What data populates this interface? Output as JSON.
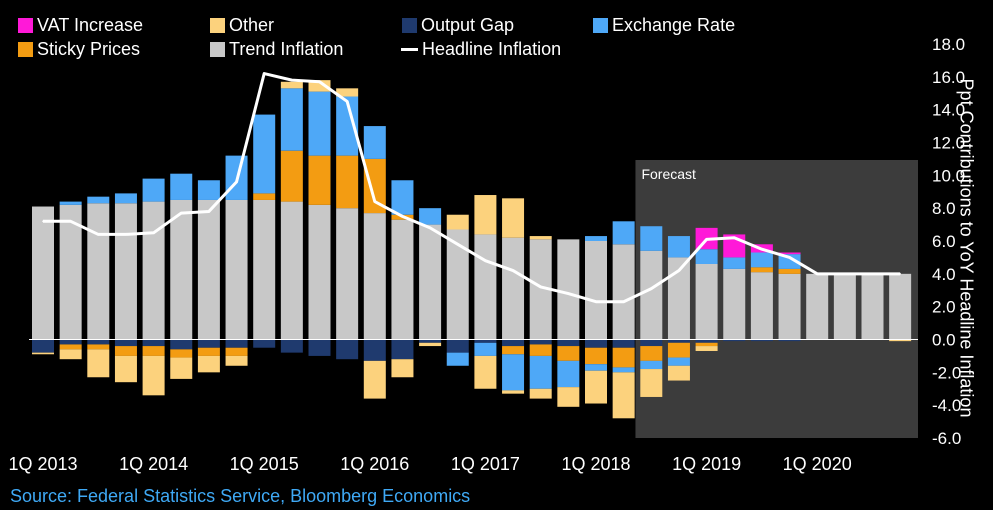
{
  "source": "Source: Federal Statistics Service, Bloomberg Economics",
  "chart_data": {
    "type": "bar",
    "stacked": true,
    "title": "",
    "xlabel": "",
    "ylabel": "Ppt Contributions to YoY Headline Inflation",
    "ylim": [
      -6,
      18
    ],
    "y_ticks": [
      "18.0",
      "16.0",
      "14.0",
      "12.0",
      "10.0",
      "8.0",
      "6.0",
      "4.0",
      "2.0",
      "0.0",
      "-2.0",
      "-4.0",
      "-6.0"
    ],
    "y_axis_position": "right",
    "legend_position": "top",
    "categories": [
      "1Q 2013",
      "2Q 2013",
      "3Q 2013",
      "4Q 2013",
      "1Q 2014",
      "2Q 2014",
      "3Q 2014",
      "4Q 2014",
      "1Q 2015",
      "2Q 2015",
      "3Q 2015",
      "4Q 2015",
      "1Q 2016",
      "2Q 2016",
      "3Q 2016",
      "4Q 2016",
      "1Q 2017",
      "2Q 2017",
      "3Q 2017",
      "4Q 2017",
      "1Q 2018",
      "2Q 2018",
      "3Q 2018",
      "4Q 2018",
      "1Q 2019",
      "2Q 2019",
      "3Q 2019",
      "4Q 2019",
      "1Q 2020",
      "2Q 2020",
      "3Q 2020",
      "4Q 2020"
    ],
    "x_tick_labels": [
      "1Q 2013",
      "1Q 2014",
      "1Q 2015",
      "1Q 2016",
      "1Q 2017",
      "1Q 2018",
      "1Q 2019",
      "1Q 2020"
    ],
    "annotations": [
      {
        "text": "Forecast",
        "from": "3Q 2018",
        "to": "4Q 2020"
      }
    ],
    "series": [
      {
        "name": "Trend Inflation",
        "color": "#c8c8c8",
        "values": [
          8.1,
          8.2,
          8.3,
          8.3,
          8.4,
          8.5,
          8.5,
          8.5,
          8.5,
          8.4,
          8.2,
          8.0,
          7.7,
          7.3,
          7.0,
          6.7,
          6.4,
          6.2,
          6.1,
          6.1,
          6.0,
          5.8,
          5.4,
          5.0,
          4.6,
          4.3,
          4.1,
          4.0,
          4.0,
          4.0,
          4.0,
          4.0
        ]
      },
      {
        "name": "Sticky Prices",
        "color": "#f39c12",
        "values": [
          0,
          0,
          0,
          0,
          0,
          0,
          0,
          0,
          0.4,
          3.1,
          3.0,
          3.2,
          3.3,
          0.3,
          0,
          0,
          0,
          0,
          0,
          0,
          0,
          0,
          0,
          0,
          0,
          0,
          0.3,
          0.3,
          0,
          0,
          0,
          0
        ]
      },
      {
        "name": "Exchange Rate",
        "color": "#4ea8f7",
        "values": [
          0,
          0.2,
          0.4,
          0.6,
          1.4,
          1.6,
          1.2,
          2.7,
          4.8,
          3.8,
          3.9,
          3.6,
          2.0,
          2.1,
          1.0,
          0,
          0,
          0,
          0,
          0,
          0.3,
          1.4,
          1.5,
          1.3,
          0.9,
          0.7,
          0.9,
          0.9,
          0,
          0,
          0,
          0
        ]
      },
      {
        "name": "Other",
        "color": "#fcd27d",
        "values": [
          0,
          0,
          0,
          0,
          0,
          0,
          0,
          0,
          0,
          0.4,
          0.7,
          0.5,
          0,
          0,
          0,
          0.9,
          2.4,
          2.4,
          0.2,
          0,
          0,
          0,
          0,
          0,
          0,
          0,
          0,
          0,
          0,
          0,
          0,
          0
        ]
      },
      {
        "name": "VAT Increase",
        "color": "#ff19d8",
        "values": [
          0,
          0,
          0,
          0,
          0,
          0,
          0,
          0,
          0,
          0,
          0,
          0,
          0,
          0,
          0,
          0,
          0,
          0,
          0,
          0,
          0,
          0,
          0,
          0,
          1.3,
          1.4,
          0.5,
          0.1,
          0,
          0,
          0,
          0
        ]
      },
      {
        "name": "Output Gap",
        "color": "#1f3a6e",
        "neg_values": [
          -0.8,
          -0.3,
          -0.3,
          -0.4,
          -0.4,
          -0.6,
          -0.5,
          -0.5,
          -0.5,
          -0.8,
          -1.0,
          -1.2,
          -1.3,
          -1.2,
          -0.2,
          -0.8,
          -0.2,
          -0.4,
          -0.3,
          -0.4,
          -0.5,
          -0.5,
          -0.4,
          -0.2,
          -0.2,
          -0.1,
          -0.1,
          -0.1,
          0,
          0,
          0,
          0
        ]
      },
      {
        "name": "Sticky Prices",
        "color": "#f39c12",
        "neg_values": [
          0,
          -0.3,
          -0.3,
          -0.6,
          -0.6,
          -0.5,
          -0.5,
          -0.5,
          0,
          0,
          0,
          0,
          0,
          0,
          0,
          0,
          0,
          -0.5,
          -0.7,
          -0.9,
          -1.0,
          -1.2,
          -0.9,
          -0.9,
          -0.2,
          0,
          0,
          0,
          0,
          0,
          0,
          0
        ]
      },
      {
        "name": "Exchange Rate",
        "color": "#4ea8f7",
        "neg_values": [
          0,
          0,
          0,
          0,
          0,
          0,
          0,
          0,
          0,
          0,
          0,
          0,
          0,
          0,
          0,
          -0.8,
          -0.8,
          -2.2,
          -2.0,
          -1.6,
          -0.4,
          -0.3,
          -0.5,
          -0.5,
          0,
          0,
          0,
          0,
          0,
          0,
          0,
          0
        ]
      },
      {
        "name": "Other",
        "color": "#fcd27d",
        "neg_values": [
          -0.1,
          -0.6,
          -1.7,
          -1.6,
          -2.4,
          -1.3,
          -1.0,
          -0.6,
          0,
          0,
          0,
          0,
          -2.3,
          -1.1,
          -0.2,
          0,
          -2.0,
          -0.2,
          -0.6,
          -1.2,
          -2.0,
          -2.8,
          -1.7,
          -0.9,
          -0.3,
          0,
          0,
          0,
          0,
          0,
          0,
          -0.1
        ]
      }
    ],
    "line": {
      "name": "Headline Inflation",
      "color": "#ffffff",
      "values": [
        7.2,
        7.2,
        6.4,
        6.4,
        6.5,
        7.7,
        7.8,
        9.6,
        16.2,
        15.8,
        15.7,
        14.5,
        8.4,
        7.5,
        6.8,
        5.8,
        4.8,
        4.2,
        3.2,
        2.8,
        2.3,
        2.3,
        3.1,
        4.2,
        6.1,
        6.2,
        5.5,
        5.0,
        4.0,
        4.0,
        4.0,
        4.0
      ]
    }
  },
  "legend": [
    {
      "label": "VAT Increase",
      "color": "#ff19d8",
      "type": "swatch"
    },
    {
      "label": "Sticky Prices",
      "color": "#f39c12",
      "type": "swatch"
    },
    {
      "label": "Other",
      "color": "#fcd27d",
      "type": "swatch"
    },
    {
      "label": "Trend Inflation",
      "color": "#c8c8c8",
      "type": "swatch"
    },
    {
      "label": "Output Gap",
      "color": "#1f3a6e",
      "type": "swatch"
    },
    {
      "label": "Headline Inflation",
      "color": "#ffffff",
      "type": "line"
    },
    {
      "label": "Exchange Rate",
      "color": "#4ea8f7",
      "type": "swatch"
    }
  ]
}
